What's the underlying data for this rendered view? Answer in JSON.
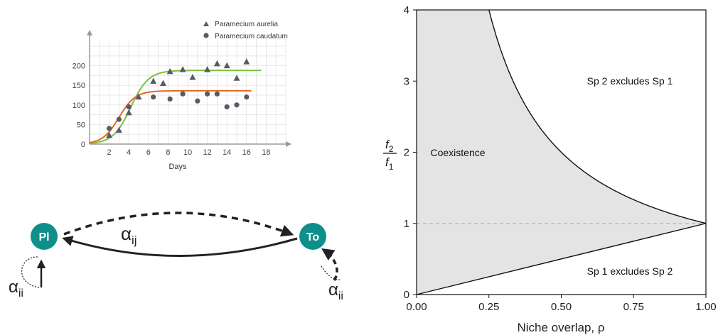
{
  "colors": {
    "aurelia_curve": "#7cbf3f",
    "caudatum_curve": "#e06a1f",
    "markers": "#5a5a66",
    "node_fill": "#0f8f8a",
    "region_fill": "#e4e4e4",
    "grid": "#e3e3e3"
  },
  "chart_data": [
    {
      "type": "scatter",
      "xlabel": "Days",
      "ylabel": "",
      "xlim": [
        0,
        20
      ],
      "ylim": [
        0,
        250
      ],
      "x_ticks": [
        2,
        4,
        6,
        8,
        10,
        12,
        14,
        16,
        18
      ],
      "y_ticks": [
        50,
        100,
        150,
        200
      ],
      "y_zero_label": "0",
      "grid": true,
      "legend_position": "top-right",
      "series": [
        {
          "name": "Paramecium aurelia",
          "marker": "triangle",
          "x": [
            2,
            3,
            4,
            5,
            6.5,
            7.5,
            8.2,
            9.5,
            10.5,
            12,
            13,
            14,
            15,
            16
          ],
          "y": [
            22,
            35,
            80,
            120,
            160,
            155,
            185,
            190,
            170,
            190,
            205,
            200,
            168,
            210
          ],
          "curve": {
            "K": 188,
            "r": 1.1,
            "x0": 4.2,
            "x_end": 17.5
          }
        },
        {
          "name": "Paramecium caudatum",
          "marker": "circle",
          "x": [
            2,
            3,
            4,
            6.5,
            8.2,
            9.5,
            11,
            12,
            13,
            14,
            15,
            16
          ],
          "y": [
            40,
            63,
            95,
            120,
            115,
            128,
            110,
            128,
            128,
            95,
            100,
            120
          ],
          "curve": {
            "K": 136,
            "r": 1.2,
            "x0": 3.0,
            "x_end": 16.5
          }
        }
      ]
    },
    {
      "type": "area",
      "xlabel": "Niche overlap, ρ",
      "ylabel_numerator": "f",
      "ylabel_numerator_sub": "2",
      "ylabel_denominator": "f",
      "ylabel_denominator_sub": "1",
      "xlim": [
        0,
        1
      ],
      "ylim": [
        0,
        4
      ],
      "x_tick_labels": [
        "0.00",
        "0.25",
        "0.50",
        "0.75",
        "1.00"
      ],
      "x_tick_values": [
        0,
        0.25,
        0.5,
        0.75,
        1
      ],
      "y_tick_labels": [
        "0",
        "1",
        "2",
        "3",
        "4"
      ],
      "y_tick_values": [
        0,
        1,
        2,
        3,
        4
      ],
      "upper_curve": "f2/f1 = 1/rho",
      "lower_curve": "f2/f1 = rho",
      "reference_line_y": 1,
      "grid": false,
      "annotations": {
        "coexistence": "Coexistence",
        "sp2_wins": "Sp 2 excludes Sp 1",
        "sp1_wins": "Sp 1 excludes Sp 2"
      }
    }
  ],
  "diagram": {
    "node_left": "Pl",
    "node_right": "To",
    "label_ij": "α",
    "label_ij_sub": "ij",
    "label_ii_left": "α",
    "label_ii_left_sub": "ii",
    "label_ii_right": "α",
    "label_ii_right_sub": "ii"
  }
}
